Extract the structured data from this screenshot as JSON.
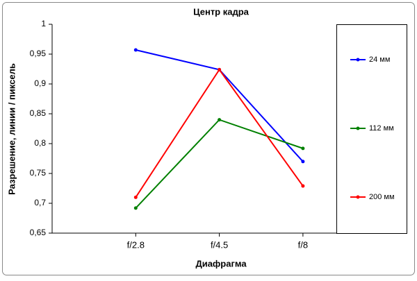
{
  "chart_data": {
    "type": "line",
    "title": "Центр кадра",
    "x_label": "Диафрагма",
    "y_label": "Разрешение, линии / пиксель",
    "categories": [
      "f/2.8",
      "f/4.5",
      "f/8"
    ],
    "series": [
      {
        "name": "24 мм",
        "color": "#0000ff",
        "values": [
          0.957,
          0.924,
          0.77
        ]
      },
      {
        "name": "112 мм",
        "color": "#008000",
        "values": [
          0.692,
          0.84,
          0.792
        ]
      },
      {
        "name": "200 мм",
        "color": "#ff0000",
        "values": [
          0.71,
          0.924,
          0.729
        ]
      }
    ],
    "ylim": [
      0.65,
      1
    ],
    "yticks": [
      {
        "value": 0.65,
        "label": "0,65"
      },
      {
        "value": 0.7,
        "label": "0,7"
      },
      {
        "value": 0.75,
        "label": "0,75"
      },
      {
        "value": 0.8,
        "label": "0,8"
      },
      {
        "value": 0.85,
        "label": "0,85"
      },
      {
        "value": 0.9,
        "label": "0,9"
      },
      {
        "value": 0.95,
        "label": "0,95"
      },
      1
    ],
    "grid": false,
    "legend": "right"
  }
}
